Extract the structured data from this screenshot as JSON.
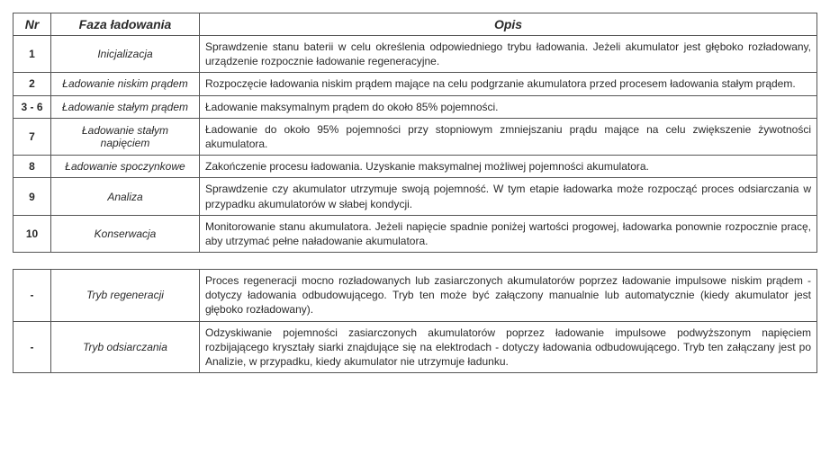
{
  "headers": {
    "nr": "Nr",
    "faza": "Faza ładowania",
    "opis": "Opis"
  },
  "table1_rows": [
    {
      "nr": "1",
      "faza": "Inicjalizacja",
      "opis": "Sprawdzenie stanu baterii w celu określenia odpowiedniego trybu ładowania. Jeżeli akumulator jest głęboko rozładowany, urządzenie rozpocznie ładowanie regeneracyjne."
    },
    {
      "nr": "2",
      "faza": "Ładowanie niskim prądem",
      "opis": "Rozpoczęcie ładowania niskim prądem mające na celu podgrzanie akumulatora  przed procesem ładowania stałym prądem."
    },
    {
      "nr": "3 - 6",
      "faza": "Ładowanie stałym prądem",
      "opis": "Ładowanie maksymalnym prądem do około 85% pojemności."
    },
    {
      "nr": "7",
      "faza": "Ładowanie stałym napięciem",
      "opis": "Ładowanie do około 95% pojemności przy stopniowym zmniejszaniu prądu mające na celu zwiększenie żywotności akumulatora."
    },
    {
      "nr": "8",
      "faza": "Ładowanie spoczynkowe",
      "opis": "Zakończenie procesu ładowania. Uzyskanie maksymalnej możliwej pojemności akumulatora."
    },
    {
      "nr": "9",
      "faza": "Analiza",
      "opis": "Sprawdzenie czy akumulator utrzymuje swoją pojemność. W tym etapie ładowarka może rozpocząć proces odsiarczania w przypadku akumulatorów w słabej kondycji."
    },
    {
      "nr": "10",
      "faza": "Konserwacja",
      "opis": "Monitorowanie stanu akumulatora. Jeżeli napięcie spadnie poniżej wartości progowej, ładowarka ponownie rozpocznie pracę, aby utrzymać pełne naładowanie akumulatora."
    }
  ],
  "table2_rows": [
    {
      "nr": "-",
      "faza": "Tryb regeneracji",
      "opis": "Proces regeneracji mocno rozładowanych lub zasiarczonych akumulatorów poprzez ładowanie impulsowe niskim prądem - dotyczy ładowania odbudowującego. Tryb ten może być załączony manualnie lub automatycznie (kiedy akumulator jest głęboko rozładowany)."
    },
    {
      "nr": "-",
      "faza": "Tryb odsiarczania",
      "opis": "Odzyskiwanie pojemności zasiarczonych akumulatorów poprzez ładowanie impulsowe podwyższonym napięciem rozbijającego kryształy siarki znajdujące się na elektrodach - dotyczy ładowania odbudowującego. Tryb ten załączany jest po Analizie, w przypadku, kiedy akumulator nie utrzymuje ładunku."
    }
  ]
}
